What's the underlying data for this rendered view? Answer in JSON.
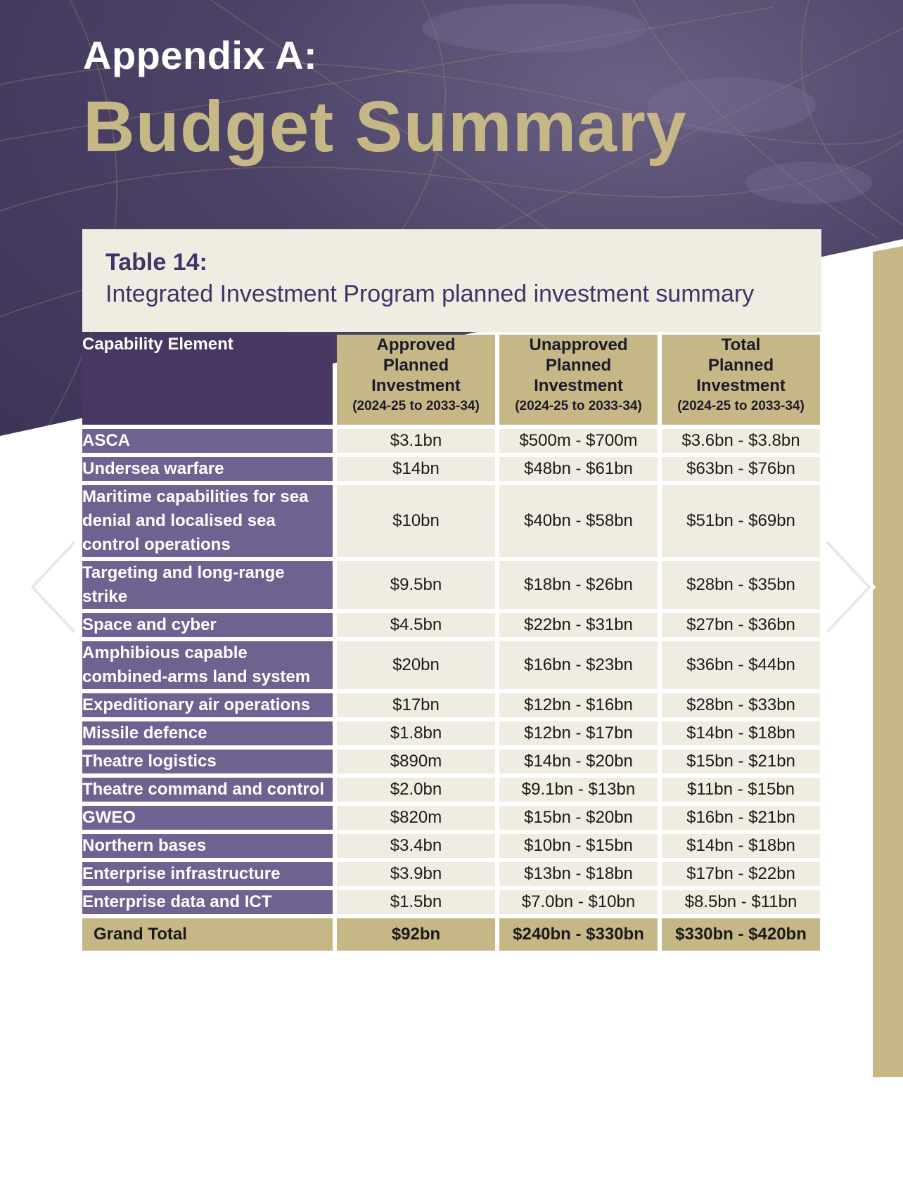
{
  "heading": {
    "line1": "Appendix A:",
    "line2": "Budget Summary"
  },
  "caption": {
    "label": "Table 14:",
    "title": "Integrated Investment Program planned investment summary"
  },
  "columns": [
    {
      "title": "Capability Element"
    },
    {
      "line1": "Approved",
      "line2": "Planned",
      "line3": "Investment",
      "period": "(2024-25 to 2033-34)"
    },
    {
      "line1": "Unapproved",
      "line2": "Planned",
      "line3": "Investment",
      "period": "(2024-25 to 2033-34)"
    },
    {
      "line1": "Total",
      "line2": "Planned",
      "line3": "Investment",
      "period": "(2024-25 to 2033-34)"
    }
  ],
  "rows": [
    {
      "element": "ASCA",
      "approved": "$3.1bn",
      "unapproved": "$500m - $700m",
      "total": "$3.6bn - $3.8bn"
    },
    {
      "element": "Undersea warfare",
      "approved": "$14bn",
      "unapproved": "$48bn - $61bn",
      "total": "$63bn - $76bn"
    },
    {
      "element": "Maritime capabilities for sea denial and localised sea control operations",
      "approved": "$10bn",
      "unapproved": "$40bn - $58bn",
      "total": "$51bn - $69bn"
    },
    {
      "element": "Targeting and long-range strike",
      "approved": "$9.5bn",
      "unapproved": "$18bn - $26bn",
      "total": "$28bn - $35bn"
    },
    {
      "element": "Space and cyber",
      "approved": "$4.5bn",
      "unapproved": "$22bn - $31bn",
      "total": "$27bn - $36bn"
    },
    {
      "element": "Amphibious capable combined-arms land system",
      "approved": "$20bn",
      "unapproved": "$16bn - $23bn",
      "total": "$36bn - $44bn"
    },
    {
      "element": "Expeditionary air operations",
      "approved": "$17bn",
      "unapproved": "$12bn - $16bn",
      "total": "$28bn - $33bn"
    },
    {
      "element": "Missile defence",
      "approved": "$1.8bn",
      "unapproved": "$12bn - $17bn",
      "total": "$14bn - $18bn"
    },
    {
      "element": "Theatre logistics",
      "approved": "$890m",
      "unapproved": "$14bn - $20bn",
      "total": "$15bn - $21bn"
    },
    {
      "element": "Theatre command and control",
      "approved": "$2.0bn",
      "unapproved": "$9.1bn - $13bn",
      "total": "$11bn - $15bn"
    },
    {
      "element": "GWEO",
      "approved": "$820m",
      "unapproved": "$15bn - $20bn",
      "total": "$16bn - $21bn"
    },
    {
      "element": "Northern bases",
      "approved": "$3.4bn",
      "unapproved": "$10bn - $15bn",
      "total": "$14bn - $18bn"
    },
    {
      "element": "Enterprise infrastructure",
      "approved": "$3.9bn",
      "unapproved": "$13bn - $18bn",
      "total": "$17bn - $22bn"
    },
    {
      "element": "Enterprise data and ICT",
      "approved": "$1.5bn",
      "unapproved": "$7.0bn - $10bn",
      "total": "$8.5bn - $11bn"
    }
  ],
  "grand_total": {
    "element": "Grand Total",
    "approved": "$92bn",
    "unapproved": "$240bn - $330bn",
    "total": "$330bn - $420bn"
  },
  "colors": {
    "purple_dark": "#473762",
    "purple_mid": "#6f6290",
    "gold": "#c6b886",
    "cream": "#f1ece2",
    "title_purple": "#403368"
  }
}
